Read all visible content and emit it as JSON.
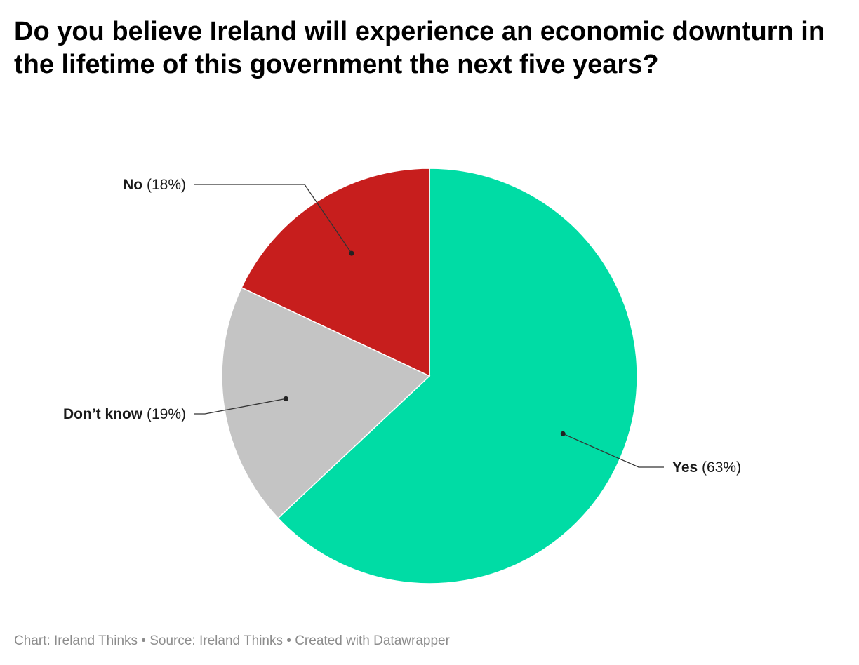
{
  "chart_data": {
    "type": "pie",
    "title": "Do you believe Ireland will experience an economic downturn in the lifetime of this government the next five years?",
    "slices": [
      {
        "label": "Yes",
        "value": 63,
        "value_text": "(63%)",
        "color": "#00dca5"
      },
      {
        "label": "Don’t know",
        "value": 19,
        "value_text": "(19%)",
        "color": "#c4c4c4"
      },
      {
        "label": "No",
        "value": 18,
        "value_text": "(18%)",
        "color": "#c71e1d"
      }
    ],
    "start": "top",
    "direction": "clockwise"
  },
  "footer": {
    "credit": "Chart: Ireland Thinks",
    "source": "Source: Ireland Thinks",
    "tool": "Created with Datawrapper",
    "separator": "•"
  }
}
